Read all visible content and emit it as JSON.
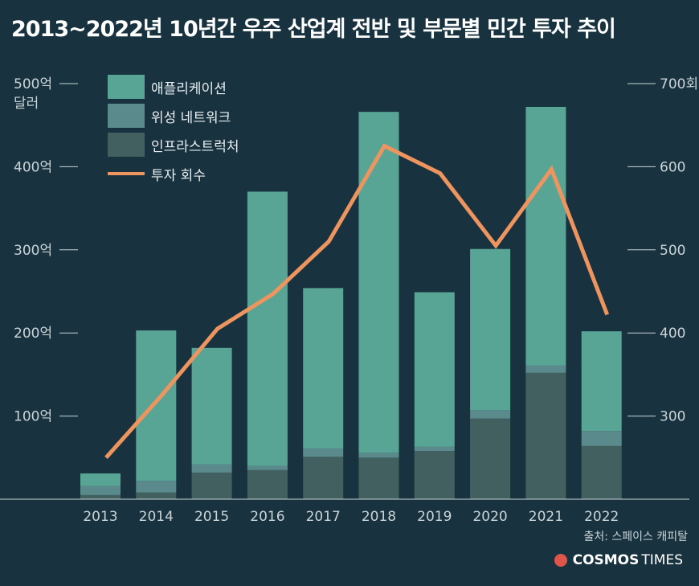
{
  "title": "2013~2022년 10년간 우주 산업계 전반 및 부문별 민간 투자 추이",
  "left_unit": "달러",
  "source": "출처: 스페이스 캐피탈",
  "brand": {
    "name_bold": "COSMOS",
    "name_light": "TIMES",
    "logo_color": "#e0554a"
  },
  "colors": {
    "applications": "#58a595",
    "satellites": "#5b8a8c",
    "infrastructure": "#42605f",
    "line": "#ee945f",
    "axis": "#c9d4d7"
  },
  "chart_data": {
    "type": "bar",
    "stacked": true,
    "categories": [
      "2013",
      "2014",
      "2015",
      "2016",
      "2017",
      "2018",
      "2019",
      "2020",
      "2021",
      "2022"
    ],
    "series": [
      {
        "name": "인프라스트럭처",
        "values": [
          5,
          8,
          32,
          35,
          51,
          50,
          58,
          97,
          152,
          64
        ]
      },
      {
        "name": "위성 네트워크",
        "values": [
          11,
          14,
          10,
          5,
          10,
          6,
          5,
          10,
          9,
          18
        ]
      },
      {
        "name": "애플리케이션",
        "values": [
          15,
          181,
          140,
          330,
          193,
          410,
          186,
          194,
          311,
          120
        ]
      }
    ],
    "line_series": {
      "name": "투자 회수",
      "axis": "right",
      "values": [
        250,
        325,
        405,
        447,
        510,
        625,
        592,
        505,
        597,
        422
      ]
    },
    "yaxis_left": {
      "ticks": [
        100,
        200,
        300,
        400,
        500
      ],
      "tick_labels": [
        "100억",
        "200억",
        "300억",
        "400억",
        "500억"
      ],
      "range": [
        0,
        500
      ]
    },
    "yaxis_right": {
      "ticks": [
        300,
        400,
        500,
        600,
        700
      ],
      "tick_labels": [
        "300",
        "400",
        "500",
        "600",
        "700회"
      ],
      "range": [
        200,
        700
      ]
    },
    "legend_position": "top-left",
    "grid": false
  }
}
